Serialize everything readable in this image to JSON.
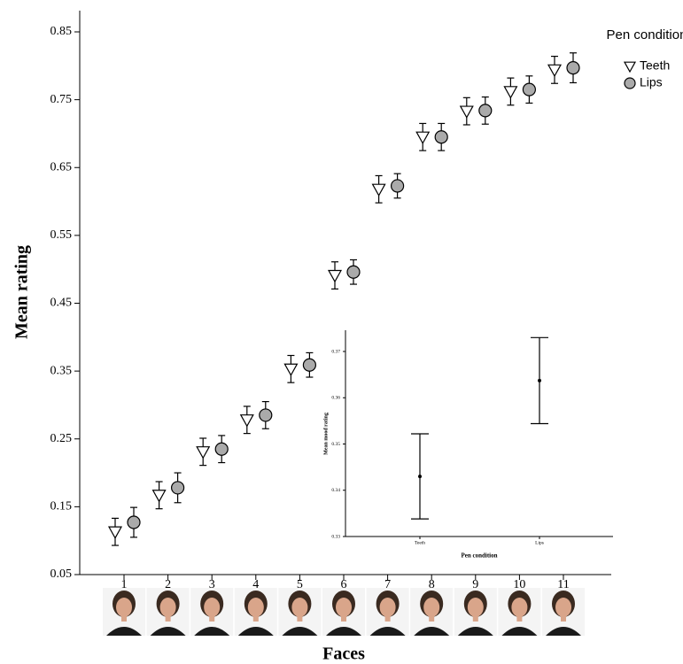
{
  "chart_data": [
    {
      "type": "errorbar",
      "x_label": "Faces",
      "y_label": "Mean rating",
      "categories": [
        "1",
        "2",
        "3",
        "4",
        "5",
        "6",
        "7",
        "8",
        "9",
        "10",
        "11"
      ],
      "series": [
        {
          "name": "Teeth",
          "marker": "triangle",
          "color": "#ffffff",
          "values": [
            0.113,
            0.167,
            0.231,
            0.278,
            0.353,
            0.491,
            0.618,
            0.695,
            0.733,
            0.762,
            0.794
          ],
          "errors": [
            0.02,
            0.02,
            0.02,
            0.02,
            0.02,
            0.02,
            0.02,
            0.02,
            0.02,
            0.02,
            0.02
          ]
        },
        {
          "name": "Lips",
          "marker": "circle",
          "color": "#aaaaaa",
          "values": [
            0.127,
            0.178,
            0.235,
            0.285,
            0.359,
            0.496,
            0.623,
            0.695,
            0.734,
            0.765,
            0.797
          ],
          "errors": [
            0.022,
            0.022,
            0.02,
            0.02,
            0.018,
            0.018,
            0.018,
            0.02,
            0.02,
            0.02,
            0.022
          ]
        }
      ],
      "legend_title": "Pen condition",
      "ylim": [
        0.05,
        0.85
      ],
      "yticks": [
        0.05,
        0.15,
        0.25,
        0.35,
        0.45,
        0.55,
        0.65,
        0.75,
        0.85
      ]
    },
    {
      "type": "errorbar",
      "x_label": "Pen condition",
      "y_label": "Mean mood rating",
      "categories": [
        "Teeth",
        "Lips"
      ],
      "series": [
        {
          "name": null,
          "marker": "dot",
          "color": "#000000",
          "values": [
            0.343,
            0.3637
          ],
          "errors": [
            0.0092,
            0.0093
          ]
        }
      ],
      "ylim": [
        0.33,
        0.37
      ],
      "yticks": [
        0.33,
        0.34,
        0.35,
        0.36,
        0.37
      ]
    }
  ]
}
